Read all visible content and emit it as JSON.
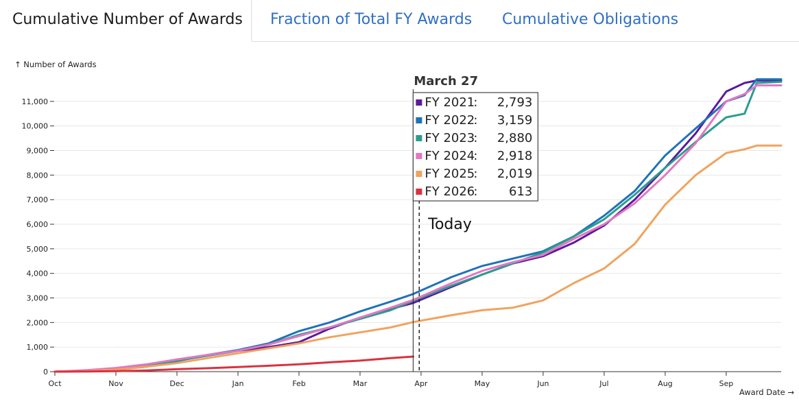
{
  "tabs": [
    {
      "label": "Cumulative Number of Awards",
      "active": true
    },
    {
      "label": "Fraction of Total FY Awards",
      "active": false
    },
    {
      "label": "Cumulative Obligations",
      "active": false
    }
  ],
  "chart_data": {
    "type": "line",
    "ylabel": "↑ Number of Awards",
    "xlabel": "Award Date →",
    "ylim": [
      0,
      12000
    ],
    "xlim": [
      0,
      11.9
    ],
    "y_ticks": [
      0,
      1000,
      2000,
      3000,
      4000,
      5000,
      6000,
      7000,
      8000,
      9000,
      10000,
      11000
    ],
    "y_tick_labels": [
      "0",
      "1,000",
      "2,000",
      "3,000",
      "4,000",
      "5,000",
      "6,000",
      "7,000",
      "8,000",
      "9,000",
      "10,000",
      "11,000"
    ],
    "x_ticks": [
      0,
      1,
      2,
      3,
      4,
      5,
      6,
      7,
      8,
      9,
      10,
      11
    ],
    "x_tick_labels": [
      "Oct",
      "Nov",
      "Dec",
      "Jan",
      "Feb",
      "Mar",
      "Apr",
      "May",
      "Jun",
      "Jul",
      "Aug",
      "Sep"
    ],
    "grid": true,
    "cursor": {
      "x": 5.87,
      "label": "March 27"
    },
    "today": {
      "x": 5.97,
      "label": "Today"
    },
    "tooltip": {
      "rows": [
        {
          "name": "FY 2021",
          "sep": ":",
          "value": "2,793"
        },
        {
          "name": "FY 2022",
          "sep": ":",
          "value": "3,159"
        },
        {
          "name": "FY 2023",
          "sep": ":",
          "value": "2,880"
        },
        {
          "name": "FY 2024",
          "sep": ":",
          "value": "2,918"
        },
        {
          "name": "FY 2025",
          "sep": ":",
          "value": "2,019"
        },
        {
          "name": "FY 2026",
          "sep": ":",
          "value": "613"
        }
      ]
    },
    "series": [
      {
        "name": "FY 2021",
        "color": "#5b1a9e",
        "x": [
          0,
          0.5,
          1,
          1.5,
          2,
          2.5,
          3,
          3.5,
          4,
          4.5,
          5,
          5.5,
          5.87,
          6.5,
          7,
          7.5,
          8,
          8.5,
          9,
          9.5,
          10,
          10.5,
          11,
          11.3,
          11.5,
          11.9
        ],
        "y": [
          0,
          30,
          100,
          200,
          450,
          650,
          850,
          1000,
          1200,
          1750,
          2200,
          2550,
          2793,
          3450,
          3950,
          4400,
          4700,
          5250,
          5950,
          7000,
          8300,
          9700,
          11400,
          11750,
          11850,
          11850
        ]
      },
      {
        "name": "FY 2022",
        "color": "#1f72b8",
        "x": [
          0,
          0.5,
          1,
          1.5,
          2,
          2.5,
          3,
          3.5,
          4,
          4.5,
          5,
          5.5,
          5.87,
          6.5,
          7,
          7.5,
          8,
          8.5,
          9,
          9.5,
          10,
          10.5,
          11,
          11.3,
          11.5,
          11.9
        ],
        "y": [
          0,
          20,
          80,
          200,
          430,
          680,
          880,
          1150,
          1650,
          2000,
          2450,
          2850,
          3159,
          3850,
          4300,
          4600,
          4900,
          5500,
          6350,
          7350,
          8800,
          9900,
          11000,
          11250,
          11900,
          11900
        ]
      },
      {
        "name": "FY 2023",
        "color": "#2a9d8f",
        "x": [
          0,
          0.5,
          1,
          1.5,
          2,
          2.5,
          3,
          3.5,
          4,
          4.5,
          5,
          5.5,
          5.87,
          6.5,
          7,
          7.5,
          8,
          8.5,
          9,
          9.5,
          10,
          10.5,
          11,
          11.3,
          11.5,
          11.9
        ],
        "y": [
          0,
          30,
          90,
          220,
          450,
          650,
          850,
          1100,
          1500,
          1800,
          2150,
          2500,
          2880,
          3500,
          3950,
          4400,
          4850,
          5500,
          6200,
          7200,
          8300,
          9350,
          10350,
          10500,
          11750,
          11800
        ]
      },
      {
        "name": "FY 2024",
        "color": "#e377c2",
        "x": [
          0,
          0.5,
          1,
          1.5,
          2,
          2.5,
          3,
          3.5,
          4,
          4.5,
          5,
          5.5,
          5.87,
          6.5,
          7,
          7.5,
          8,
          8.5,
          9,
          9.5,
          10,
          10.5,
          11,
          11.3,
          11.5,
          11.9
        ],
        "y": [
          0,
          60,
          150,
          300,
          500,
          680,
          850,
          1100,
          1450,
          1800,
          2200,
          2600,
          2918,
          3600,
          4100,
          4450,
          4750,
          5400,
          6000,
          6850,
          8000,
          9300,
          11000,
          11300,
          11650,
          11650
        ]
      },
      {
        "name": "FY 2025",
        "color": "#f0a35e",
        "x": [
          0,
          0.5,
          1,
          1.5,
          2,
          2.5,
          3,
          3.5,
          4,
          4.5,
          5,
          5.5,
          5.87,
          6.5,
          7,
          7.5,
          8,
          8.5,
          9,
          9.5,
          10,
          10.5,
          11,
          11.3,
          11.5,
          11.9
        ],
        "y": [
          0,
          20,
          80,
          200,
          350,
          550,
          750,
          950,
          1150,
          1400,
          1600,
          1800,
          2019,
          2300,
          2500,
          2600,
          2900,
          3600,
          4200,
          5200,
          6800,
          8000,
          8900,
          9050,
          9200,
          9200
        ]
      },
      {
        "name": "FY 2026",
        "color": "#d93240",
        "x": [
          0,
          0.5,
          1,
          1.5,
          2,
          2.5,
          3,
          3.5,
          4,
          4.5,
          5,
          5.5,
          5.87
        ],
        "y": [
          0,
          5,
          20,
          50,
          100,
          140,
          190,
          240,
          300,
          380,
          450,
          550,
          613
        ]
      }
    ]
  }
}
